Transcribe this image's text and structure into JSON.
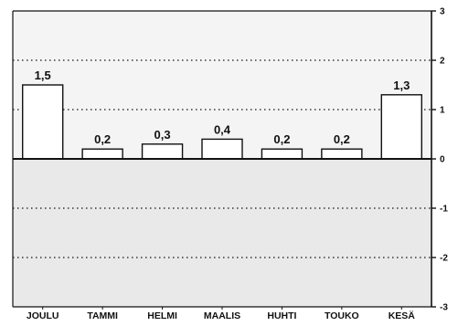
{
  "chart_data": {
    "type": "bar",
    "categories": [
      "JOULU",
      "TAMMI",
      "HELMI",
      "MAALIS",
      "HUHTI",
      "TOUKO",
      "KESÄ"
    ],
    "values": [
      1.5,
      0.2,
      0.3,
      0.4,
      0.2,
      0.2,
      1.3
    ],
    "data_labels": [
      "1,5",
      "0,2",
      "0,3",
      "0,4",
      "0,2",
      "0,2",
      "1,3"
    ],
    "ylim": [
      -3,
      3
    ],
    "yticks": [
      3,
      2,
      1,
      0,
      -1,
      -2,
      -3
    ],
    "ytick_labels": [
      "3",
      "2",
      "1",
      "0",
      "-1",
      "-2",
      "-3"
    ],
    "y_axis_side": "right",
    "grid": "dotted horizontal lines at 2, 1, -1, -2",
    "colors": {
      "bar_fill": "#ffffff",
      "bar_stroke": "#111111",
      "upper_background": "#f4f4f4",
      "lower_background": "#e9e9e9"
    }
  }
}
